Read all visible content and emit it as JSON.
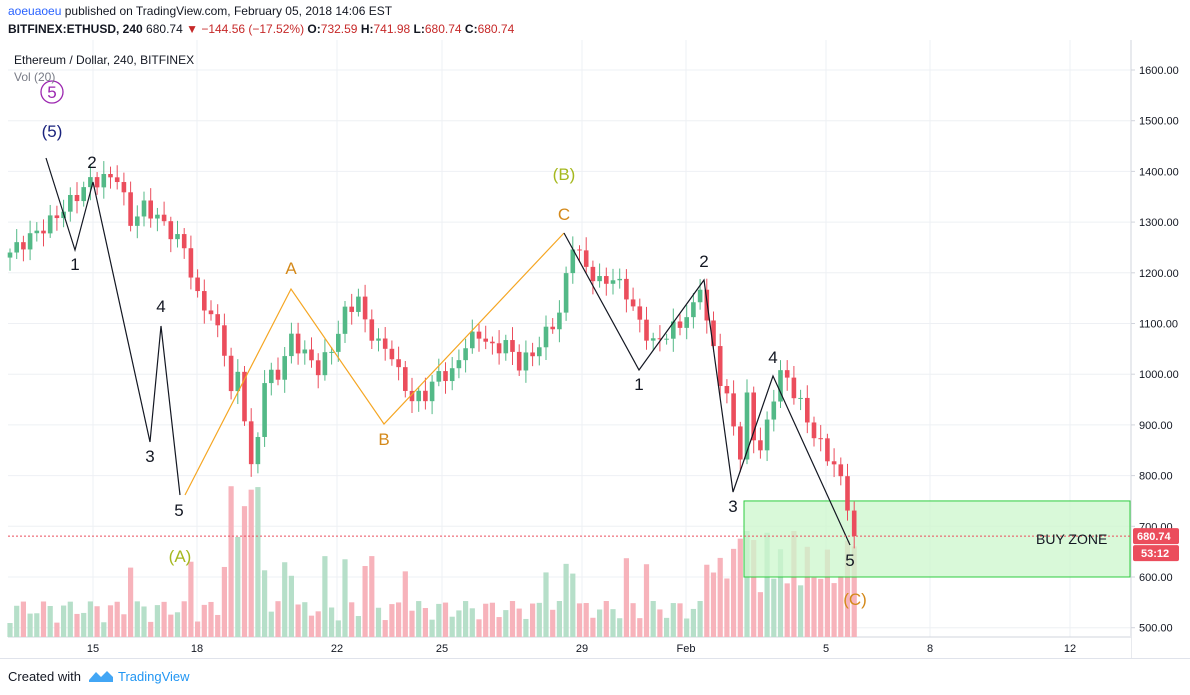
{
  "header": {
    "author": "aoeuaoeu",
    "published_text": "published on TradingView.com, February 05, 2018 14:06 EST",
    "symbol": "BITFINEX:ETHUSD, 240",
    "last": "680.74",
    "change": "−144.56 (−17.52%)",
    "o_label": "O:",
    "o": "732.59",
    "h_label": "H:",
    "h": "741.98",
    "l_label": "L:",
    "l": "680.74",
    "c_label": "C:",
    "c": "680.74"
  },
  "footer": {
    "created_with": "Created with",
    "brand": "TradingView"
  },
  "colors": {
    "up": "#53b987",
    "down": "#eb4d5c",
    "vol_up": "#b6dfc9",
    "vol_down": "#f7b3bb",
    "price_tag": "#eb4d5c",
    "buy_zone_fill": "#ccf7cc",
    "buy_zone_border": "#2ecc40",
    "orange_path": "#f5a623",
    "black_path": "#131722"
  },
  "chart_data": {
    "type": "candlestick",
    "title": "Ethereum / Dollar, 240, BITFINEX",
    "volume_label": "Vol (20)",
    "y_ticks": [
      "1600.00",
      "1500.00",
      "1400.00",
      "1300.00",
      "1200.00",
      "1100.00",
      "1000.00",
      "900.00",
      "800.00",
      "700.00",
      "600.00",
      "500.00"
    ],
    "x_ticks": [
      "15",
      "18",
      "22",
      "25",
      "29",
      "Feb",
      "5",
      "8",
      "12"
    ],
    "last_price": "680.74",
    "timer": "53:12",
    "buy_zone_label": "BUY ZONE",
    "buy_zone_range": [
      600,
      750
    ],
    "wave_labels": [
      {
        "text": "5",
        "circled": true,
        "color": "#9c27b0"
      },
      {
        "text": "(5)",
        "color": "#1a237e"
      },
      {
        "text": "2",
        "color": "#131722"
      },
      {
        "text": "1",
        "color": "#131722"
      },
      {
        "text": "4",
        "color": "#131722"
      },
      {
        "text": "3",
        "color": "#131722"
      },
      {
        "text": "5",
        "color": "#131722"
      },
      {
        "text": "(A)",
        "color": "#a5b81e"
      },
      {
        "text": "A",
        "color": "#d4891a"
      },
      {
        "text": "B",
        "color": "#d4891a"
      },
      {
        "text": "C",
        "color": "#d4891a"
      },
      {
        "text": "(B)",
        "color": "#a5b81e"
      },
      {
        "text": "1",
        "color": "#131722"
      },
      {
        "text": "2",
        "color": "#131722"
      },
      {
        "text": "3",
        "color": "#131722"
      },
      {
        "text": "4",
        "color": "#131722"
      },
      {
        "text": "5",
        "color": "#131722"
      },
      {
        "text": "(C)",
        "color": "#d4891a"
      }
    ],
    "price_waypoints": [
      [
        0,
        1240
      ],
      [
        6,
        1300
      ],
      [
        12,
        1380
      ],
      [
        16,
        1390
      ],
      [
        18,
        1300
      ],
      [
        20,
        1330
      ],
      [
        22,
        1310
      ],
      [
        24,
        1280
      ],
      [
        26,
        1250
      ],
      [
        28,
        1150
      ],
      [
        30,
        1120
      ],
      [
        32,
        1050
      ],
      [
        33,
        960
      ],
      [
        34,
        1000
      ],
      [
        35,
        920
      ],
      [
        36,
        810
      ],
      [
        37,
        880
      ],
      [
        38,
        990
      ],
      [
        40,
        1000
      ],
      [
        42,
        1070
      ],
      [
        44,
        1040
      ],
      [
        46,
        1010
      ],
      [
        48,
        1050
      ],
      [
        50,
        1120
      ],
      [
        52,
        1150
      ],
      [
        53,
        1100
      ],
      [
        55,
        1060
      ],
      [
        57,
        1040
      ],
      [
        58,
        1000
      ],
      [
        60,
        950
      ],
      [
        62,
        960
      ],
      [
        64,
        1000
      ],
      [
        66,
        1000
      ],
      [
        68,
        1060
      ],
      [
        70,
        1080
      ],
      [
        72,
        1050
      ],
      [
        74,
        1060
      ],
      [
        76,
        1020
      ],
      [
        78,
        1040
      ],
      [
        80,
        1080
      ],
      [
        82,
        1120
      ],
      [
        83,
        1190
      ],
      [
        84,
        1260
      ],
      [
        86,
        1210
      ],
      [
        88,
        1180
      ],
      [
        90,
        1190
      ],
      [
        92,
        1160
      ],
      [
        94,
        1100
      ],
      [
        96,
        1060
      ],
      [
        98,
        1080
      ],
      [
        100,
        1100
      ],
      [
        102,
        1130
      ],
      [
        103,
        1180
      ],
      [
        104,
        1100
      ],
      [
        105,
        1050
      ],
      [
        106,
        990
      ],
      [
        107,
        950
      ],
      [
        108,
        900
      ],
      [
        109,
        840
      ],
      [
        110,
        950
      ],
      [
        111,
        880
      ],
      [
        112,
        850
      ],
      [
        113,
        900
      ],
      [
        114,
        960
      ],
      [
        115,
        1000
      ],
      [
        116,
        990
      ],
      [
        118,
        940
      ],
      [
        120,
        880
      ],
      [
        121,
        860
      ],
      [
        122,
        840
      ],
      [
        123,
        820
      ],
      [
        124,
        790
      ],
      [
        125,
        745
      ],
      [
        126,
        680.74
      ]
    ]
  }
}
